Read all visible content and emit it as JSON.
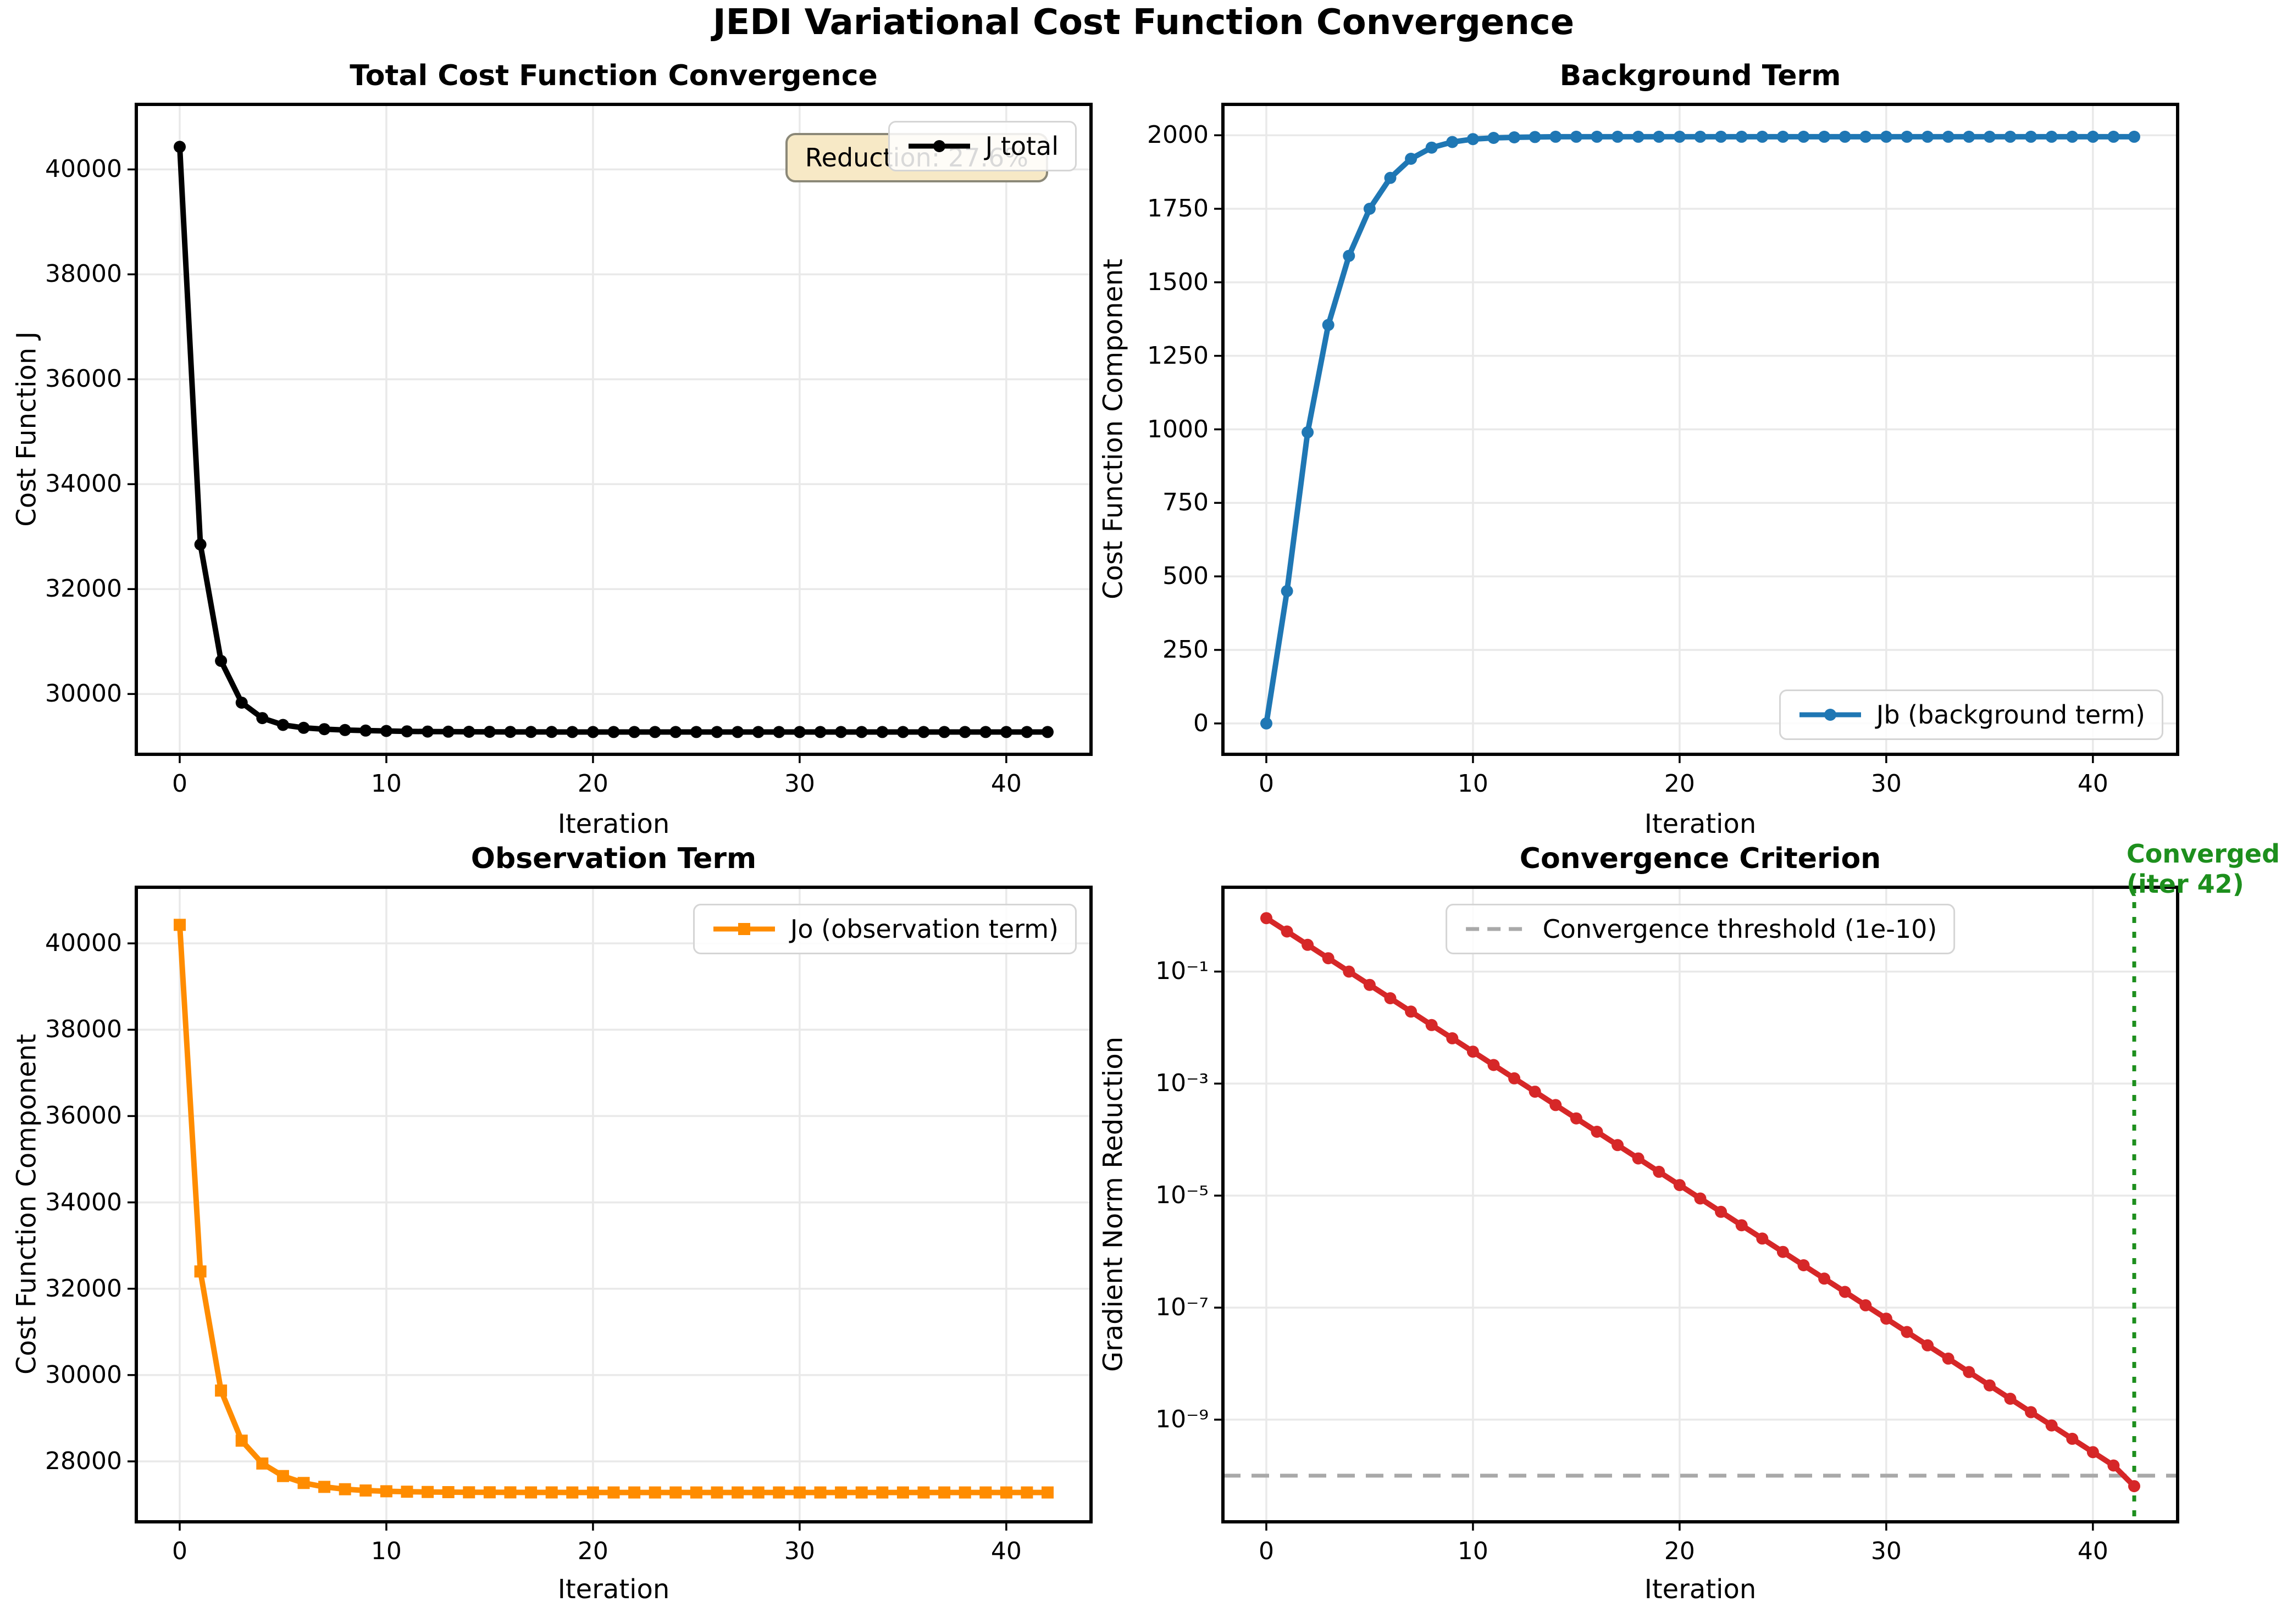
{
  "figure": {
    "suptitle": "JEDI Variational Cost Function Convergence",
    "colors": {
      "total": "#000000",
      "background": "#1f77b4",
      "observation": "#ff8c00",
      "gradient": "#d62728",
      "threshold": "#a9a9a9",
      "converged": "#1d8f1d",
      "grid": "#e9e9e9",
      "annotation_bg": "#f7e9c6",
      "annotation_border": "#8b8878"
    }
  },
  "iterations": [
    0,
    1,
    2,
    3,
    4,
    5,
    6,
    7,
    8,
    9,
    10,
    11,
    12,
    13,
    14,
    15,
    16,
    17,
    18,
    19,
    20,
    21,
    22,
    23,
    24,
    25,
    26,
    27,
    28,
    29,
    30,
    31,
    32,
    33,
    34,
    35,
    36,
    37,
    38,
    39,
    40,
    41,
    42
  ],
  "chart_data": [
    {
      "type": "line",
      "title": "Total Cost Function Convergence",
      "xlabel": "Iteration",
      "ylabel": "Cost Function J",
      "legend": {
        "label": "J total",
        "sample": "marker",
        "position": "upper right"
      },
      "annotation": "Reduction: 27.6%",
      "color": "#000000",
      "marker": "circle",
      "grid": true,
      "xlim": [
        -2.1,
        44.1
      ],
      "ylim": [
        28850,
        41240
      ],
      "xticks": [
        0,
        10,
        20,
        30,
        40
      ],
      "yticks": [
        30000,
        32000,
        34000,
        36000,
        38000,
        40000
      ],
      "values": [
        40430,
        32850,
        30630,
        29835,
        29540,
        29410,
        29355,
        29330,
        29313,
        29302,
        29295,
        29288,
        29284,
        29281,
        29279,
        29278,
        29277,
        29276,
        29276,
        29275,
        29275,
        29275,
        29275,
        29275,
        29275,
        29275,
        29275,
        29275,
        29275,
        29275,
        29275,
        29275,
        29275,
        29275,
        29275,
        29275,
        29275,
        29275,
        29275,
        29275,
        29275,
        29275,
        29275
      ]
    },
    {
      "type": "line",
      "title": "Background Term",
      "xlabel": "Iteration",
      "ylabel": "Cost Function Component",
      "legend": {
        "label": "Jb (background term)",
        "sample": "marker",
        "position": "lower right"
      },
      "color": "#1f77b4",
      "marker": "circle",
      "grid": true,
      "xlim": [
        -2.1,
        44.1
      ],
      "ylim": [
        -105,
        2105
      ],
      "xticks": [
        0,
        10,
        20,
        30,
        40
      ],
      "yticks": [
        0,
        250,
        500,
        750,
        1000,
        1250,
        1500,
        1750,
        2000
      ],
      "values": [
        0,
        450,
        990,
        1355,
        1590,
        1750,
        1855,
        1920,
        1958,
        1977,
        1987,
        1991,
        1993,
        1994,
        1995,
        1995,
        1995,
        1995,
        1995,
        1995,
        1995,
        1995,
        1995,
        1995,
        1995,
        1995,
        1995,
        1995,
        1995,
        1995,
        1995,
        1995,
        1995,
        1995,
        1995,
        1995,
        1995,
        1995,
        1995,
        1995,
        1995,
        1995,
        1995
      ]
    },
    {
      "type": "line",
      "title": "Observation Term",
      "xlabel": "Iteration",
      "ylabel": "Cost Function Component",
      "legend": {
        "label": "Jo (observation term)",
        "sample": "marker",
        "position": "upper right"
      },
      "color": "#ff8c00",
      "marker": "square",
      "grid": true,
      "xlim": [
        -2.1,
        44.1
      ],
      "ylim": [
        26600,
        41300
      ],
      "xticks": [
        0,
        10,
        20,
        30,
        40
      ],
      "yticks": [
        28000,
        30000,
        32000,
        34000,
        36000,
        38000,
        40000
      ],
      "values": [
        40430,
        32400,
        29640,
        28480,
        27950,
        27660,
        27500,
        27410,
        27355,
        27325,
        27308,
        27297,
        27291,
        27287,
        27284,
        27283,
        27282,
        27281,
        27281,
        27280,
        27280,
        27280,
        27280,
        27280,
        27280,
        27280,
        27280,
        27280,
        27280,
        27280,
        27280,
        27280,
        27280,
        27280,
        27280,
        27280,
        27280,
        27280,
        27280,
        27280,
        27280,
        27280,
        27280
      ]
    },
    {
      "type": "line",
      "title": "Convergence Criterion",
      "xlabel": "Iteration",
      "ylabel": "Gradient Norm Reduction",
      "legend": {
        "label": "Convergence threshold (1e-10)",
        "sample": "dashed",
        "position": "upper center"
      },
      "color": "#d62728",
      "marker": "circle",
      "grid": true,
      "yscale": "log",
      "xlim": [
        -2.1,
        44.1
      ],
      "ylim": [
        1.5e-11,
        3.2
      ],
      "xticks": [
        0,
        10,
        20,
        30,
        40
      ],
      "yticks": [
        0.1,
        0.001,
        1e-05,
        1e-07,
        1e-09
      ],
      "ytick_labels": [
        "10⁻¹",
        "10⁻³",
        "10⁻⁵",
        "10⁻⁷",
        "10⁻⁹"
      ],
      "threshold": 1e-10,
      "threshold_color": "#a9a9a9",
      "vline": 42,
      "vline_color": "#1d8f1d",
      "converged": [
        "Converged",
        "(iter 42)"
      ],
      "values": [
        0.9,
        0.52,
        0.3,
        0.173,
        0.1,
        0.0578,
        0.0334,
        0.0193,
        0.0111,
        0.00644,
        0.00372,
        0.00215,
        0.00124,
        0.000717,
        0.000414,
        0.000239,
        0.000138,
        7.98e-05,
        4.61e-05,
        2.66e-05,
        1.54e-05,
        8.88e-06,
        5.13e-06,
        2.96e-06,
        1.71e-06,
        9.89e-07,
        5.71e-07,
        3.3e-07,
        1.91e-07,
        1.1e-07,
        6.36e-08,
        3.67e-08,
        2.12e-08,
        1.23e-08,
        7.08e-09,
        4.09e-09,
        2.36e-09,
        1.36e-09,
        7.88e-10,
        4.55e-10,
        2.63e-10,
        1.52e-10,
        6.5e-11
      ]
    }
  ]
}
